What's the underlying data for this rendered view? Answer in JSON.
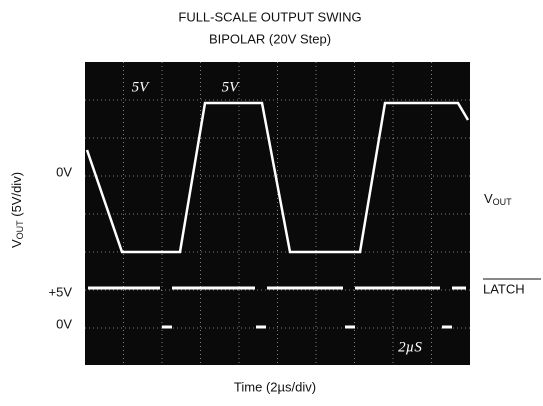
{
  "header": {
    "title_line1": "FULL-SCALE OUTPUT SWING",
    "title_line2": "BIPOLAR (20V Step)"
  },
  "y_axis_label": {
    "main": "V",
    "sub": "OUT",
    "rest": " (5V/div)"
  },
  "x_axis_label": "Time (2µs/div)",
  "left_labels": {
    "vout_zero": "0V",
    "latch_high": "+5V",
    "latch_zero": "0V"
  },
  "right_labels": {
    "vout_main": "V",
    "vout_sub": "OUT",
    "latch": "LATCH"
  },
  "screen_annotations": {
    "ch1_scale": "5V",
    "ch2_scale": "5V",
    "time_scale": "2µS"
  }
}
